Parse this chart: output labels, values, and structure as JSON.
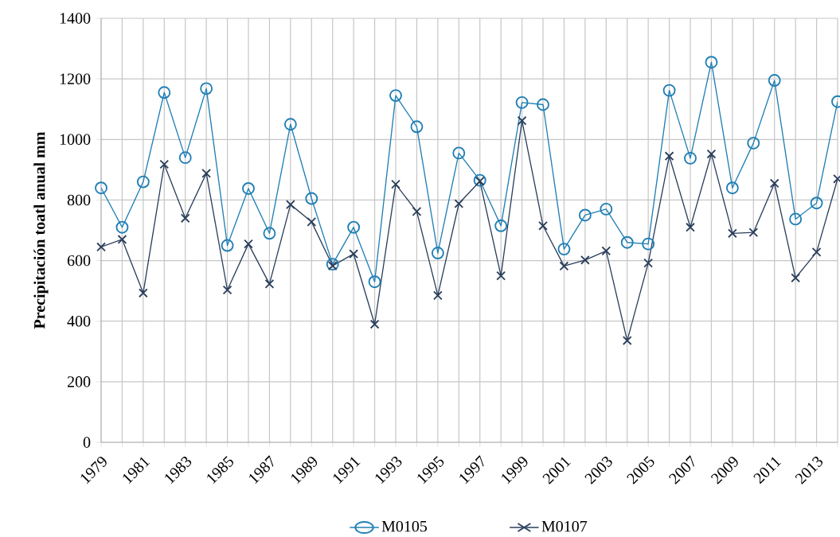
{
  "chart_data": {
    "type": "line",
    "ylabel": "Precipitación toatl anual  mm",
    "categories": [
      "1979",
      null,
      "1981",
      null,
      "1983",
      null,
      "1985",
      null,
      "1987",
      null,
      "1989",
      null,
      "1991",
      null,
      "1993",
      null,
      "1995",
      null,
      "1997",
      null,
      "1999",
      null,
      "2001",
      null,
      "2003",
      null,
      "2005",
      null,
      "2007",
      null,
      "2009",
      null,
      "2011",
      null,
      "2013",
      null
    ],
    "series": [
      {
        "name": "M0105",
        "color": "#1f7fb5",
        "marker": "circle",
        "values": [
          840,
          710,
          860,
          1155,
          940,
          1168,
          650,
          838,
          690,
          1050,
          805,
          588,
          710,
          530,
          1145,
          1042,
          625,
          955,
          865,
          715,
          1122,
          1115,
          638,
          750,
          770,
          660,
          655,
          1162,
          938,
          1255,
          840,
          988,
          1195,
          737,
          790,
          1125
        ]
      },
      {
        "name": "M0107",
        "color": "#2b3f5c",
        "marker": "cross",
        "values": [
          645,
          670,
          493,
          918,
          740,
          888,
          503,
          655,
          523,
          785,
          728,
          583,
          622,
          390,
          852,
          762,
          485,
          788,
          862,
          550,
          1062,
          715,
          582,
          602,
          632,
          336,
          592,
          945,
          710,
          952,
          690,
          693,
          855,
          543,
          628,
          870
        ]
      }
    ],
    "ylim": [
      0,
      1400
    ],
    "yticks": [
      0,
      200,
      400,
      600,
      800,
      1000,
      1200,
      1400
    ],
    "grid": true,
    "legend": "bottom"
  }
}
